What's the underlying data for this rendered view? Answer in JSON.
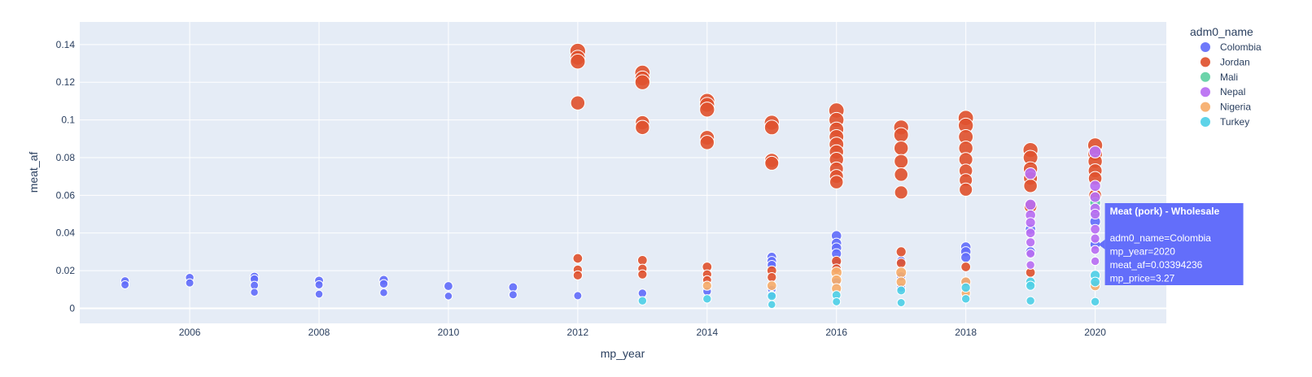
{
  "chart_data": {
    "type": "scatter",
    "xlabel": "mp_year",
    "ylabel": "meat_af",
    "xlim": [
      2004.3,
      2021.1
    ],
    "ylim": [
      -0.008,
      0.152
    ],
    "x_ticks": [
      2006,
      2008,
      2010,
      2012,
      2014,
      2016,
      2018,
      2020
    ],
    "y_ticks": [
      0,
      0.02,
      0.04,
      0.06,
      0.08,
      0.1,
      0.12,
      0.14
    ],
    "x_tick_labels": [
      "2006",
      "2008",
      "2010",
      "2012",
      "2014",
      "2016",
      "2018",
      "2020"
    ],
    "y_tick_labels": [
      "0",
      "0.02",
      "0.04",
      "0.06",
      "0.08",
      "0.1",
      "0.12",
      "0.14"
    ],
    "grid": true,
    "legend": {
      "title": "adm0_name",
      "placement": "right",
      "items": [
        {
          "name": "Colombia",
          "color": "#636efa"
        },
        {
          "name": "Jordan",
          "color": "#e0532f"
        },
        {
          "name": "Mali",
          "color": "#5fd0a3"
        },
        {
          "name": "Nepal",
          "color": "#b86ef2"
        },
        {
          "name": "Nigeria",
          "color": "#f6ad6a"
        },
        {
          "name": "Turkey",
          "color": "#4fcfe6"
        }
      ]
    },
    "series": [
      {
        "name": "Colombia",
        "points": [
          [
            2005,
            0.0145,
            1.0
          ],
          [
            2005,
            0.0125,
            0.9
          ],
          [
            2006,
            0.0163,
            1.0
          ],
          [
            2006,
            0.0135,
            0.9
          ],
          [
            2007,
            0.0168,
            1.1
          ],
          [
            2007,
            0.0155,
            1.0
          ],
          [
            2007,
            0.0122,
            0.9
          ],
          [
            2007,
            0.0085,
            0.8
          ],
          [
            2008,
            0.0147,
            1.1
          ],
          [
            2008,
            0.0125,
            0.9
          ],
          [
            2008,
            0.0075,
            0.8
          ],
          [
            2009,
            0.015,
            1.2
          ],
          [
            2009,
            0.013,
            1.0
          ],
          [
            2009,
            0.0083,
            0.8
          ],
          [
            2010,
            0.0118,
            1.1
          ],
          [
            2010,
            0.0065,
            0.8
          ],
          [
            2011,
            0.0112,
            1.1
          ],
          [
            2011,
            0.0072,
            0.9
          ],
          [
            2012,
            0.0067,
            0.9
          ],
          [
            2013,
            0.008,
            1.0
          ],
          [
            2014,
            0.009,
            1.0
          ],
          [
            2015,
            0.0272,
            1.3
          ],
          [
            2015,
            0.025,
            1.3
          ],
          [
            2015,
            0.023,
            1.2
          ],
          [
            2015,
            0.01,
            1.0
          ],
          [
            2015,
            0.007,
            0.9
          ],
          [
            2016,
            0.0385,
            1.5
          ],
          [
            2016,
            0.0345,
            1.5
          ],
          [
            2016,
            0.032,
            1.5
          ],
          [
            2016,
            0.029,
            1.4
          ],
          [
            2016,
            0.024,
            1.4
          ],
          [
            2016,
            0.014,
            1.2
          ],
          [
            2017,
            0.025,
            1.3
          ],
          [
            2017,
            0.017,
            1.2
          ],
          [
            2017,
            0.011,
            1.1
          ],
          [
            2018,
            0.0325,
            1.5
          ],
          [
            2018,
            0.03,
            1.5
          ],
          [
            2018,
            0.027,
            1.4
          ],
          [
            2018,
            0.014,
            1.2
          ],
          [
            2019,
            0.055,
            1.7
          ],
          [
            2019,
            0.042,
            1.5
          ],
          [
            2019,
            0.03,
            1.4
          ],
          [
            2020,
            0.0555,
            1.7
          ],
          [
            2020,
            0.046,
            1.6
          ],
          [
            2020,
            0.0339,
            1.5
          ]
        ]
      },
      {
        "name": "Jordan",
        "points": [
          [
            2012,
            0.1365,
            3.0
          ],
          [
            2012,
            0.133,
            2.8
          ],
          [
            2012,
            0.131,
            2.8
          ],
          [
            2012,
            0.109,
            2.6
          ],
          [
            2012,
            0.0265,
            1.3
          ],
          [
            2012,
            0.0205,
            1.2
          ],
          [
            2012,
            0.0175,
            1.2
          ],
          [
            2013,
            0.125,
            2.9
          ],
          [
            2013,
            0.122,
            2.8
          ],
          [
            2013,
            0.12,
            2.8
          ],
          [
            2013,
            0.0985,
            2.6
          ],
          [
            2013,
            0.096,
            2.6
          ],
          [
            2013,
            0.0255,
            1.3
          ],
          [
            2013,
            0.021,
            1.2
          ],
          [
            2013,
            0.018,
            1.2
          ],
          [
            2014,
            0.11,
            2.9
          ],
          [
            2014,
            0.108,
            2.8
          ],
          [
            2014,
            0.1055,
            2.8
          ],
          [
            2014,
            0.0905,
            2.7
          ],
          [
            2014,
            0.088,
            2.6
          ],
          [
            2014,
            0.022,
            1.3
          ],
          [
            2014,
            0.018,
            1.2
          ],
          [
            2014,
            0.015,
            1.1
          ],
          [
            2015,
            0.0985,
            2.8
          ],
          [
            2015,
            0.096,
            2.7
          ],
          [
            2015,
            0.0785,
            2.6
          ],
          [
            2015,
            0.077,
            2.5
          ],
          [
            2015,
            0.02,
            1.3
          ],
          [
            2015,
            0.0165,
            1.2
          ],
          [
            2016,
            0.105,
            2.9
          ],
          [
            2016,
            0.1,
            2.8
          ],
          [
            2016,
            0.095,
            2.7
          ],
          [
            2016,
            0.091,
            2.7
          ],
          [
            2016,
            0.087,
            2.7
          ],
          [
            2016,
            0.083,
            2.6
          ],
          [
            2016,
            0.079,
            2.6
          ],
          [
            2016,
            0.074,
            2.5
          ],
          [
            2016,
            0.07,
            2.5
          ],
          [
            2016,
            0.067,
            2.4
          ],
          [
            2016,
            0.025,
            1.4
          ],
          [
            2016,
            0.021,
            1.3
          ],
          [
            2017,
            0.096,
            2.8
          ],
          [
            2017,
            0.092,
            2.7
          ],
          [
            2017,
            0.085,
            2.6
          ],
          [
            2017,
            0.078,
            2.5
          ],
          [
            2017,
            0.071,
            2.4
          ],
          [
            2017,
            0.0615,
            2.3
          ],
          [
            2017,
            0.03,
            1.4
          ],
          [
            2017,
            0.024,
            1.3
          ],
          [
            2018,
            0.101,
            2.9
          ],
          [
            2018,
            0.097,
            2.8
          ],
          [
            2018,
            0.091,
            2.7
          ],
          [
            2018,
            0.085,
            2.6
          ],
          [
            2018,
            0.079,
            2.5
          ],
          [
            2018,
            0.073,
            2.4
          ],
          [
            2018,
            0.068,
            2.3
          ],
          [
            2018,
            0.063,
            2.3
          ],
          [
            2018,
            0.022,
            1.3
          ],
          [
            2019,
            0.084,
            2.8
          ],
          [
            2019,
            0.08,
            2.7
          ],
          [
            2019,
            0.074,
            2.6
          ],
          [
            2019,
            0.069,
            2.5
          ],
          [
            2019,
            0.065,
            2.4
          ],
          [
            2019,
            0.054,
            2.2
          ],
          [
            2019,
            0.019,
            1.3
          ],
          [
            2020,
            0.0865,
            2.8
          ],
          [
            2020,
            0.082,
            2.7
          ],
          [
            2020,
            0.078,
            2.6
          ],
          [
            2020,
            0.073,
            2.5
          ],
          [
            2020,
            0.069,
            2.4
          ],
          [
            2020,
            0.06,
            2.2
          ]
        ]
      },
      {
        "name": "Mali",
        "points": [
          [
            2019,
            0.013,
            1.2
          ],
          [
            2020,
            0.056,
            1.6
          ],
          [
            2020,
            0.051,
            1.5
          ]
        ]
      },
      {
        "name": "Nepal",
        "points": [
          [
            2019,
            0.0715,
            1.9
          ],
          [
            2019,
            0.055,
            1.7
          ],
          [
            2019,
            0.0495,
            1.5
          ],
          [
            2019,
            0.0455,
            1.4
          ],
          [
            2019,
            0.04,
            1.3
          ],
          [
            2019,
            0.035,
            1.2
          ],
          [
            2019,
            0.029,
            1.1
          ],
          [
            2019,
            0.023,
            1.0
          ],
          [
            2020,
            0.083,
            2.0
          ],
          [
            2020,
            0.065,
            1.7
          ],
          [
            2020,
            0.059,
            1.6
          ],
          [
            2020,
            0.053,
            1.5
          ],
          [
            2020,
            0.05,
            1.4
          ],
          [
            2020,
            0.042,
            1.3
          ],
          [
            2020,
            0.037,
            1.2
          ],
          [
            2020,
            0.031,
            1.1
          ],
          [
            2020,
            0.025,
            1.0
          ]
        ]
      },
      {
        "name": "Nigeria",
        "points": [
          [
            2014,
            0.012,
            1.2
          ],
          [
            2015,
            0.012,
            1.3
          ],
          [
            2016,
            0.019,
            1.7
          ],
          [
            2016,
            0.015,
            1.5
          ],
          [
            2016,
            0.0105,
            1.4
          ],
          [
            2017,
            0.019,
            1.6
          ],
          [
            2017,
            0.014,
            1.4
          ],
          [
            2018,
            0.014,
            1.4
          ],
          [
            2018,
            0.008,
            1.2
          ],
          [
            2020,
            0.012,
            1.4
          ]
        ]
      },
      {
        "name": "Turkey",
        "points": [
          [
            2013,
            0.004,
            1.0
          ],
          [
            2014,
            0.005,
            1.0
          ],
          [
            2015,
            0.0065,
            1.1
          ],
          [
            2015,
            0.002,
            0.8
          ],
          [
            2016,
            0.007,
            1.1
          ],
          [
            2016,
            0.0035,
            0.9
          ],
          [
            2017,
            0.0095,
            1.1
          ],
          [
            2017,
            0.003,
            0.9
          ],
          [
            2018,
            0.011,
            1.2
          ],
          [
            2018,
            0.005,
            1.0
          ],
          [
            2019,
            0.014,
            1.3
          ],
          [
            2019,
            0.012,
            1.2
          ],
          [
            2019,
            0.004,
            1.0
          ],
          [
            2020,
            0.0175,
            1.4
          ],
          [
            2020,
            0.014,
            1.3
          ],
          [
            2020,
            0.0035,
            1.0
          ]
        ]
      }
    ],
    "tooltip": {
      "title": "Meat (pork) - Wholesale",
      "lines": [
        "adm0_name=Colombia",
        "mp_year=2020",
        "meat_af=0.03394236",
        "mp_price=3.27"
      ],
      "anchor": [
        2020,
        0.0339
      ],
      "color": "#636efa"
    }
  }
}
